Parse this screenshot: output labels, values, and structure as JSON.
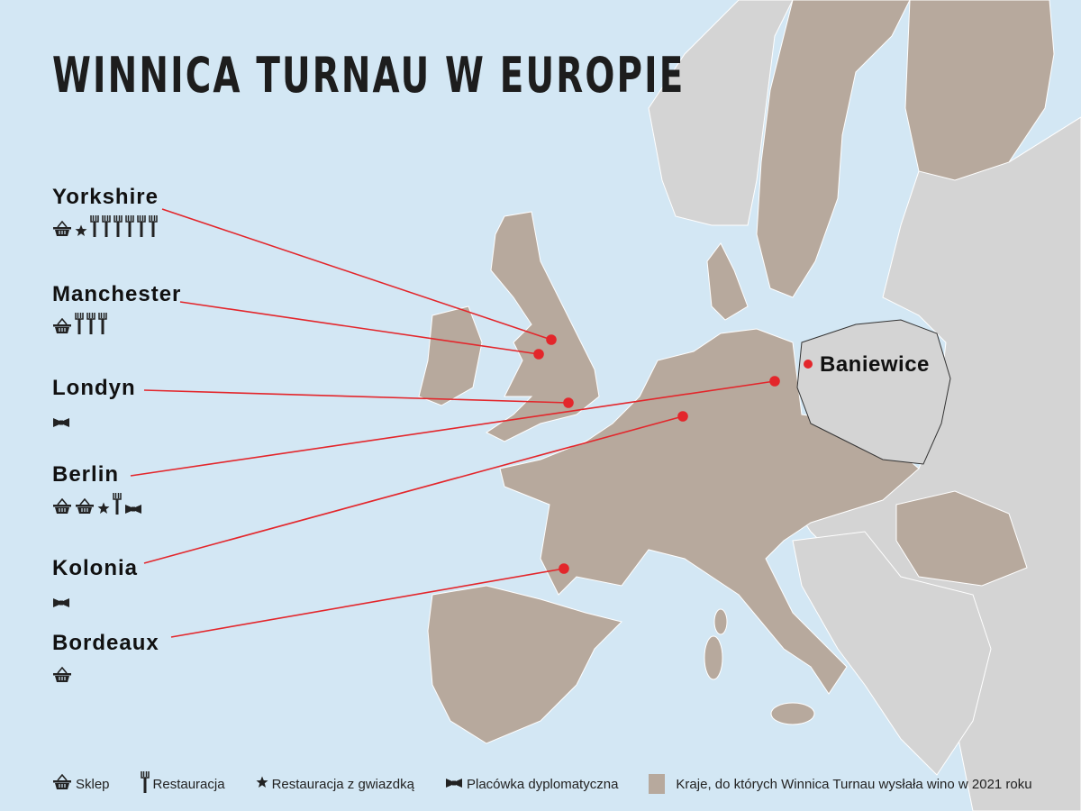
{
  "title": "WINNICA TURNAU W EUROPIE",
  "colors": {
    "sea": "#d3e7f4",
    "shipped_countries": "#b7a99d",
    "other_countries": "#d4d4d4",
    "pointer": "#e3262b"
  },
  "home": {
    "name": "Baniewice"
  },
  "locations": [
    {
      "name": "Yorkshire",
      "icons": [
        "basket-icon",
        "star-icon",
        "fork-icon",
        "fork-icon",
        "fork-icon",
        "fork-icon",
        "fork-icon",
        "fork-icon"
      ]
    },
    {
      "name": "Manchester",
      "icons": [
        "basket-icon",
        "fork-icon",
        "fork-icon",
        "fork-icon"
      ]
    },
    {
      "name": "Londyn",
      "icons": [
        "bowtie-icon"
      ]
    },
    {
      "name": "Berlin",
      "icons": [
        "basket-icon",
        "basket-icon",
        "star-icon",
        "fork-icon",
        "bowtie-icon"
      ]
    },
    {
      "name": "Kolonia",
      "icons": [
        "bowtie-icon"
      ]
    },
    {
      "name": "Bordeaux",
      "icons": [
        "basket-icon"
      ]
    }
  ],
  "legend": {
    "shop": "Sklep",
    "restaurant": "Restauracja",
    "star_restaurant": "Restauracja z gwiazdką",
    "diplomatic": "Placówka dyplomatyczna",
    "countries": "Kraje, do których Winnica Turnau wysłała wino w 2021 roku"
  }
}
